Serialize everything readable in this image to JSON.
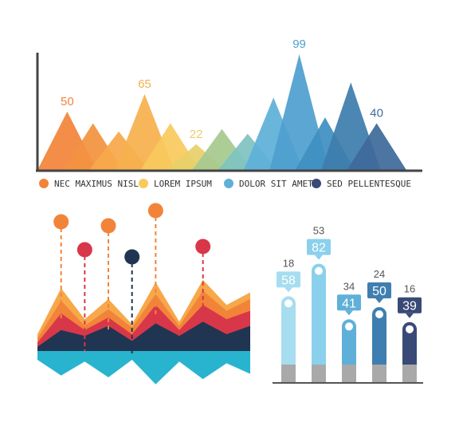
{
  "colors": {
    "orange": "#f2843a",
    "orange_light": "#f7a84a",
    "yellow": "#f9c95d",
    "green": "#a7c98f",
    "teal": "#7fc3c1",
    "blue_light": "#5fb0d8",
    "blue": "#3f8fc2",
    "blue_dark": "#3e6b9a",
    "navy": "#3a4a77",
    "axis": "#444444",
    "red": "#d8374a",
    "cyan": "#28b4cf",
    "darknavy": "#1f3552",
    "grey": "#a9a9a9"
  },
  "chart_data": [
    {
      "type": "area",
      "subtype": "triangle-peaks",
      "series_colors": [
        "#f2843a",
        "#f29240",
        "#f7a84a",
        "#f6b04d",
        "#f9c95d",
        "#e8d069",
        "#a7c98f",
        "#7fc3c1",
        "#5fb0d8",
        "#4f9fcf",
        "#3f8fc2",
        "#3e7dad",
        "#3e6b9a",
        "#3a4a77"
      ],
      "values": [
        {
          "value": 50,
          "label": "50"
        },
        {
          "value": 40,
          "label": ""
        },
        {
          "value": 33,
          "label": ""
        },
        {
          "value": 65,
          "label": "65"
        },
        {
          "value": 40,
          "label": ""
        },
        {
          "value": 22,
          "label": "22"
        },
        {
          "value": 35,
          "label": ""
        },
        {
          "value": 31,
          "label": ""
        },
        {
          "value": 62,
          "label": ""
        },
        {
          "value": 99,
          "label": "99"
        },
        {
          "value": 45,
          "label": ""
        },
        {
          "value": 75,
          "label": ""
        },
        {
          "value": 40,
          "label": "40"
        }
      ],
      "ylim": [
        0,
        110
      ],
      "legend": [
        {
          "label": "NEC MAXIMUS NISL",
          "color": "#f2843a"
        },
        {
          "label": "LOREM IPSUM",
          "color": "#f9c95d"
        },
        {
          "label": "DOLOR SIT AMET",
          "color": "#5fb0d8"
        },
        {
          "label": "SED PELLENTESQUE",
          "color": "#3a4a77"
        }
      ]
    },
    {
      "type": "area",
      "subtype": "layered-zigzag",
      "series": [
        {
          "color": "#f7a84a",
          "values": [
            20,
            75,
            38,
            62,
            32,
            82,
            35,
            85,
            55,
            70
          ]
        },
        {
          "color": "#f2843a",
          "values": [
            15,
            60,
            30,
            50,
            28,
            68,
            30,
            72,
            48,
            62
          ]
        },
        {
          "color": "#d8374a",
          "values": [
            10,
            45,
            25,
            40,
            20,
            55,
            25,
            55,
            38,
            48
          ]
        },
        {
          "color": "#1f3552",
          "values": [
            5,
            25,
            18,
            30,
            12,
            33,
            18,
            35,
            20,
            30
          ]
        }
      ],
      "mirror": {
        "color": "#28b4cf",
        "values": [
          10,
          28,
          12,
          30,
          10,
          38,
          12,
          32,
          14,
          26
        ]
      },
      "markers": [
        {
          "color": "#f2843a",
          "index": 1
        },
        {
          "color": "#d8374a",
          "index": 2
        },
        {
          "color": "#f2843a",
          "index": 3
        },
        {
          "color": "#1f3552",
          "index": 4
        },
        {
          "color": "#f2843a",
          "index": 5
        },
        {
          "color": "#d8374a",
          "index": 7
        }
      ]
    },
    {
      "type": "bar",
      "subtype": "rounded-thermometer",
      "bars": [
        {
          "value": 58,
          "top_label": "18",
          "color": "#a6ddf0",
          "badge_color": "#a6ddf0"
        },
        {
          "value": 82,
          "top_label": "53",
          "color": "#8bd0ec",
          "badge_color": "#8bd0ec"
        },
        {
          "value": 41,
          "top_label": "34",
          "color": "#5fb0d8",
          "badge_color": "#5fb0d8"
        },
        {
          "value": 50,
          "top_label": "24",
          "color": "#3f7eb0",
          "badge_color": "#3f7eb0"
        },
        {
          "value": 39,
          "top_label": "16",
          "color": "#3a4a77",
          "badge_color": "#3a4a77"
        }
      ],
      "ylim": [
        0,
        100
      ]
    }
  ]
}
